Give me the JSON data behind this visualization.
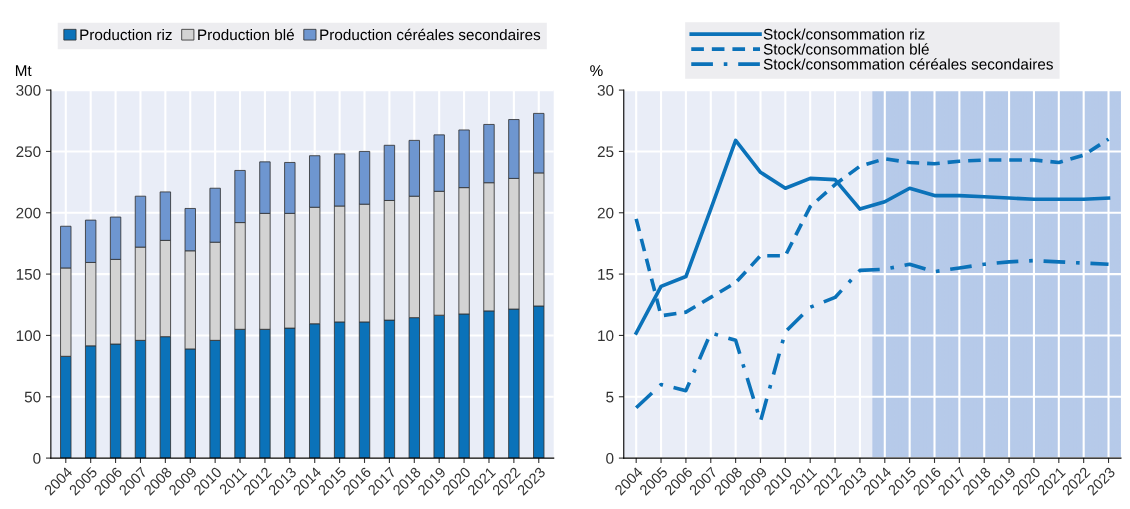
{
  "chart_data": [
    {
      "type": "bar",
      "stacked": true,
      "ylabel": "Mt",
      "categories": [
        "2004",
        "2005",
        "2006",
        "2007",
        "2008",
        "2009",
        "2010",
        "2011",
        "2012",
        "2013",
        "2014",
        "2015",
        "2016",
        "2017",
        "2018",
        "2019",
        "2020",
        "2021",
        "2022",
        "2023"
      ],
      "series": [
        {
          "name": "Production riz",
          "color": "#0b72b9",
          "values": [
            83,
            91.5,
            93,
            96,
            99,
            89,
            96,
            105,
            105,
            106,
            109.5,
            111,
            111,
            112.5,
            114.5,
            116.5,
            117.5,
            120,
            121.5,
            124
          ]
        },
        {
          "name": "Production blé",
          "color": "#d3d3d3",
          "values": [
            72,
            68,
            69,
            76,
            78.5,
            80,
            80,
            87,
            94.5,
            93.5,
            95,
            94.5,
            96,
            97.5,
            99,
            101,
            103,
            104.5,
            106.5,
            108.5
          ]
        },
        {
          "name": "Production céréales secondaires",
          "color": "#6e96d0",
          "values": [
            34,
            34.5,
            34.5,
            41.5,
            39.5,
            34.5,
            44,
            42.5,
            42,
            41.5,
            42,
            42.5,
            43,
            45,
            45.5,
            46,
            47,
            47.5,
            48,
            48.5
          ]
        }
      ],
      "ylim": [
        0,
        300
      ],
      "yticks": [
        0,
        50,
        100,
        150,
        200,
        250,
        300
      ],
      "grid": true,
      "legend": "top"
    },
    {
      "type": "line",
      "ylabel": "%",
      "x": [
        2004,
        2005,
        2006,
        2007,
        2008,
        2009,
        2010,
        2011,
        2012,
        2013,
        2014,
        2015,
        2016,
        2017,
        2018,
        2019,
        2020,
        2021,
        2022,
        2023
      ],
      "series": [
        {
          "name": "Stock/consommation riz",
          "color": "#0b72b9",
          "line_style": "solid",
          "values": [
            10.2,
            14.0,
            14.8,
            20.3,
            25.9,
            23.3,
            22.0,
            22.8,
            22.7,
            20.3,
            20.9,
            22.0,
            21.4,
            21.4,
            21.3,
            21.2,
            21.1,
            21.1,
            21.1,
            21.2
          ]
        },
        {
          "name": "Stock/consommation blé",
          "color": "#0b72b9",
          "line_style": "dashed",
          "values": [
            19.5,
            11.6,
            11.9,
            13.1,
            14.3,
            16.5,
            16.5,
            20.5,
            22.3,
            23.8,
            24.4,
            24.1,
            24.0,
            24.2,
            24.3,
            24.3,
            24.3,
            24.1,
            24.7,
            26.0
          ]
        },
        {
          "name": "Stock/consommation céréales secondaires",
          "color": "#0b72b9",
          "line_style": "dashdot",
          "values": [
            4.1,
            6.0,
            5.5,
            10.2,
            9.6,
            3.0,
            10.3,
            12.3,
            13.1,
            15.3,
            15.4,
            15.8,
            15.2,
            15.5,
            15.8,
            16.0,
            16.1,
            16.0,
            15.9,
            15.8
          ]
        }
      ],
      "xlim": [
        2003.5,
        2023.5
      ],
      "xticks": [
        2004,
        2005,
        2006,
        2007,
        2008,
        2009,
        2010,
        2011,
        2012,
        2013,
        2014,
        2015,
        2016,
        2017,
        2018,
        2019,
        2020,
        2021,
        2022,
        2023
      ],
      "ylim": [
        0,
        30
      ],
      "yticks": [
        0,
        5,
        10,
        15,
        20,
        25,
        30
      ],
      "bands": [
        {
          "axis": "x",
          "from": 2013.5,
          "to": 2023.5,
          "color": "#a9c1e6"
        }
      ],
      "grid": true,
      "legend": "top",
      "marker": "none"
    }
  ]
}
